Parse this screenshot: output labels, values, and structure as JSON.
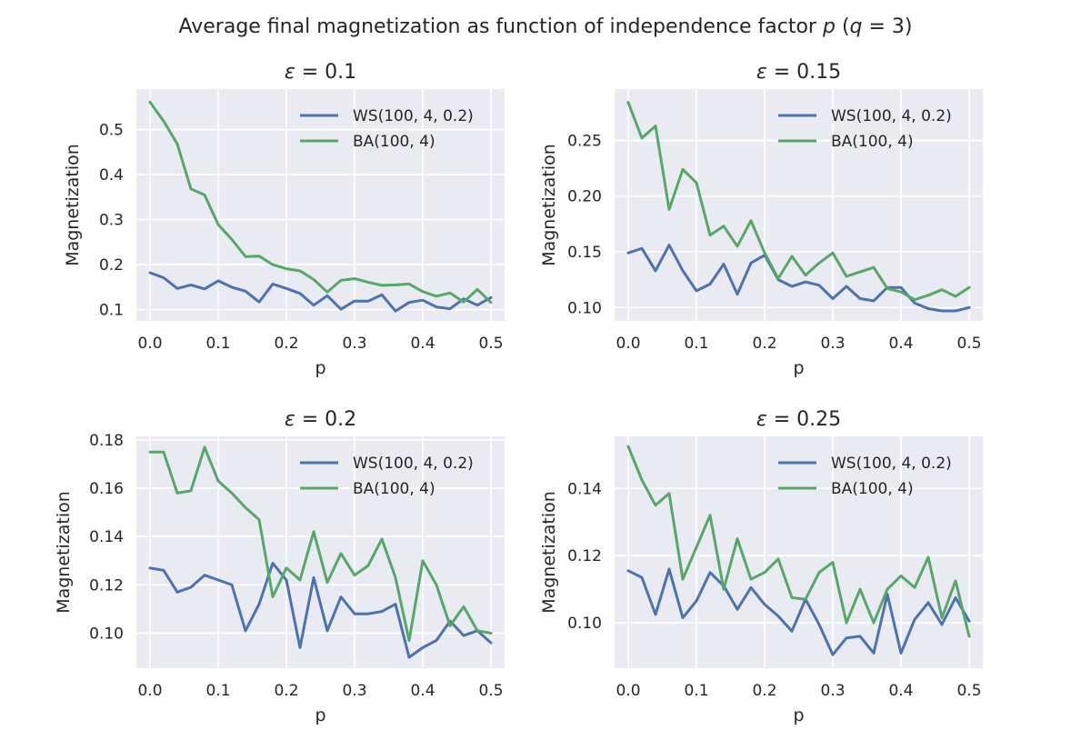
{
  "figure": {
    "title": "Average final magnetization as function of independence factor p (q = 3)"
  },
  "colors": {
    "ws": "#4c72b0",
    "ba": "#55a868",
    "plot_bg": "#eaeaf2",
    "grid": "#ffffff"
  },
  "chart_data": [
    {
      "type": "line",
      "title": "ε = 0.1",
      "xlabel": "p",
      "ylabel": "Magnetization",
      "xlim": [
        -0.02,
        0.52
      ],
      "ylim": [
        0.075,
        0.59
      ],
      "xticks": [
        0.0,
        0.1,
        0.2,
        0.3,
        0.4,
        0.5
      ],
      "xtick_labels": [
        "0.0",
        "0.1",
        "0.2",
        "0.3",
        "0.4",
        "0.5"
      ],
      "yticks": [
        0.1,
        0.2,
        0.3,
        0.4,
        0.5
      ],
      "ytick_labels": [
        "0.1",
        "0.2",
        "0.3",
        "0.4",
        "0.5"
      ],
      "grid": true,
      "legend_position": "top-right",
      "x": [
        0.0,
        0.02,
        0.04,
        0.06,
        0.08,
        0.1,
        0.12,
        0.14,
        0.16,
        0.18,
        0.2,
        0.22,
        0.24,
        0.26,
        0.28,
        0.3,
        0.32,
        0.34,
        0.36,
        0.38,
        0.4,
        0.42,
        0.44,
        0.46,
        0.48,
        0.5
      ],
      "series": [
        {
          "name": "WS(100, 4, 0.2)",
          "color": "#4c72b0",
          "values": [
            0.182,
            0.171,
            0.147,
            0.155,
            0.146,
            0.164,
            0.15,
            0.141,
            0.117,
            0.157,
            0.147,
            0.136,
            0.11,
            0.131,
            0.101,
            0.119,
            0.119,
            0.133,
            0.097,
            0.116,
            0.121,
            0.106,
            0.102,
            0.124,
            0.11,
            0.127
          ]
        },
        {
          "name": "BA(100, 4)",
          "color": "#55a868",
          "values": [
            0.561,
            0.519,
            0.468,
            0.368,
            0.355,
            0.289,
            0.256,
            0.218,
            0.219,
            0.2,
            0.191,
            0.186,
            0.167,
            0.139,
            0.165,
            0.169,
            0.161,
            0.154,
            0.155,
            0.157,
            0.14,
            0.13,
            0.137,
            0.117,
            0.145,
            0.116
          ]
        }
      ]
    },
    {
      "type": "line",
      "title": "ε = 0.15",
      "xlabel": "p",
      "ylabel": "Magnetization",
      "xlim": [
        -0.02,
        0.52
      ],
      "ylim": [
        0.088,
        0.296
      ],
      "xticks": [
        0.0,
        0.1,
        0.2,
        0.3,
        0.4,
        0.5
      ],
      "xtick_labels": [
        "0.0",
        "0.1",
        "0.2",
        "0.3",
        "0.4",
        "0.5"
      ],
      "yticks": [
        0.1,
        0.15,
        0.2,
        0.25
      ],
      "ytick_labels": [
        "0.10",
        "0.15",
        "0.20",
        "0.25"
      ],
      "grid": true,
      "legend_position": "top-right",
      "x": [
        0.0,
        0.02,
        0.04,
        0.06,
        0.08,
        0.1,
        0.12,
        0.14,
        0.16,
        0.18,
        0.2,
        0.22,
        0.24,
        0.26,
        0.28,
        0.3,
        0.32,
        0.34,
        0.36,
        0.38,
        0.4,
        0.42,
        0.44,
        0.46,
        0.48,
        0.5
      ],
      "series": [
        {
          "name": "WS(100, 4, 0.2)",
          "color": "#4c72b0",
          "values": [
            0.149,
            0.153,
            0.133,
            0.156,
            0.133,
            0.115,
            0.121,
            0.139,
            0.112,
            0.14,
            0.147,
            0.125,
            0.119,
            0.123,
            0.12,
            0.108,
            0.119,
            0.108,
            0.106,
            0.118,
            0.118,
            0.104,
            0.099,
            0.097,
            0.097,
            0.1
          ]
        },
        {
          "name": "BA(100, 4)",
          "color": "#55a868",
          "values": [
            0.284,
            0.252,
            0.263,
            0.188,
            0.224,
            0.212,
            0.165,
            0.173,
            0.155,
            0.178,
            0.149,
            0.126,
            0.146,
            0.129,
            0.14,
            0.149,
            0.128,
            0.132,
            0.136,
            0.117,
            0.114,
            0.107,
            0.111,
            0.116,
            0.11,
            0.118
          ]
        }
      ]
    },
    {
      "type": "line",
      "title": "ε = 0.2",
      "xlabel": "p",
      "ylabel": "Magnetization",
      "xlim": [
        -0.02,
        0.52
      ],
      "ylim": [
        0.0855,
        0.1815
      ],
      "xticks": [
        0.0,
        0.1,
        0.2,
        0.3,
        0.4,
        0.5
      ],
      "xtick_labels": [
        "0.0",
        "0.1",
        "0.2",
        "0.3",
        "0.4",
        "0.5"
      ],
      "yticks": [
        0.1,
        0.12,
        0.14,
        0.16,
        0.18
      ],
      "ytick_labels": [
        "0.10",
        "0.12",
        "0.14",
        "0.16",
        "0.18"
      ],
      "grid": true,
      "legend_position": "top-right",
      "x": [
        0.0,
        0.02,
        0.04,
        0.06,
        0.08,
        0.1,
        0.12,
        0.14,
        0.16,
        0.18,
        0.2,
        0.22,
        0.24,
        0.26,
        0.28,
        0.3,
        0.32,
        0.34,
        0.36,
        0.38,
        0.4,
        0.42,
        0.44,
        0.46,
        0.48,
        0.5
      ],
      "series": [
        {
          "name": "WS(100, 4, 0.2)",
          "color": "#4c72b0",
          "values": [
            0.127,
            0.126,
            0.117,
            0.119,
            0.124,
            0.122,
            0.12,
            0.101,
            0.112,
            0.129,
            0.122,
            0.094,
            0.123,
            0.101,
            0.115,
            0.108,
            0.108,
            0.109,
            0.112,
            0.09,
            0.094,
            0.097,
            0.105,
            0.099,
            0.101,
            0.096
          ]
        },
        {
          "name": "BA(100, 4)",
          "color": "#55a868",
          "values": [
            0.175,
            0.175,
            0.158,
            0.159,
            0.177,
            0.163,
            0.158,
            0.152,
            0.147,
            0.115,
            0.127,
            0.122,
            0.142,
            0.121,
            0.133,
            0.124,
            0.128,
            0.139,
            0.123,
            0.097,
            0.13,
            0.12,
            0.103,
            0.111,
            0.101,
            0.1
          ]
        }
      ]
    },
    {
      "type": "line",
      "title": "ε = 0.25",
      "xlabel": "p",
      "ylabel": "Magnetization",
      "xlim": [
        -0.02,
        0.52
      ],
      "ylim": [
        0.0865,
        0.1555
      ],
      "xticks": [
        0.0,
        0.1,
        0.2,
        0.3,
        0.4,
        0.5
      ],
      "xtick_labels": [
        "0.0",
        "0.1",
        "0.2",
        "0.3",
        "0.4",
        "0.5"
      ],
      "yticks": [
        0.1,
        0.12,
        0.14
      ],
      "ytick_labels": [
        "0.10",
        "0.12",
        "0.14"
      ],
      "grid": true,
      "legend_position": "top-right",
      "x": [
        0.0,
        0.02,
        0.04,
        0.06,
        0.08,
        0.1,
        0.12,
        0.14,
        0.16,
        0.18,
        0.2,
        0.22,
        0.24,
        0.26,
        0.28,
        0.3,
        0.32,
        0.34,
        0.36,
        0.38,
        0.4,
        0.42,
        0.44,
        0.46,
        0.48,
        0.5
      ],
      "series": [
        {
          "name": "WS(100, 4, 0.2)",
          "color": "#4c72b0",
          "values": [
            0.1155,
            0.1135,
            0.1025,
            0.116,
            0.1015,
            0.1065,
            0.115,
            0.111,
            0.104,
            0.1105,
            0.1055,
            0.102,
            0.0975,
            0.107,
            0.0995,
            0.0905,
            0.0955,
            0.096,
            0.091,
            0.1085,
            0.091,
            0.101,
            0.106,
            0.0995,
            0.1075,
            0.1005
          ]
        },
        {
          "name": "BA(100, 4)",
          "color": "#55a868",
          "values": [
            0.1525,
            0.1425,
            0.135,
            0.1385,
            0.113,
            0.1225,
            0.132,
            0.11,
            0.125,
            0.113,
            0.115,
            0.119,
            0.1075,
            0.107,
            0.115,
            0.118,
            0.1,
            0.11,
            0.1,
            0.11,
            0.114,
            0.1105,
            0.1195,
            0.1015,
            0.1125,
            0.096
          ]
        }
      ]
    }
  ]
}
